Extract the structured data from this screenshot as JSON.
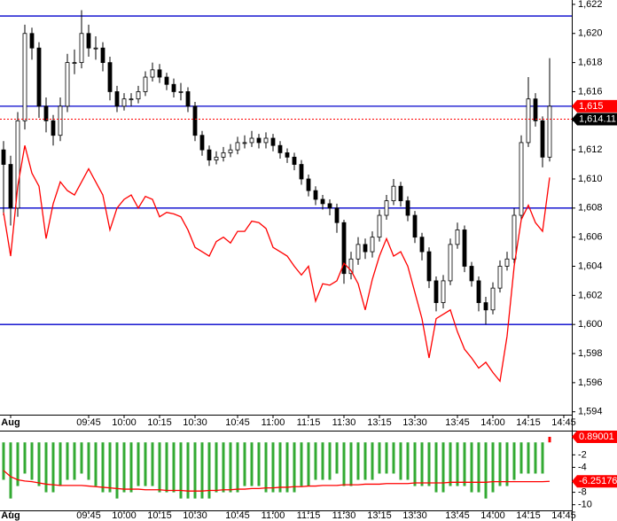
{
  "chart_data": [
    {
      "type": "candlestick",
      "categories": [
        null,
        "Aug",
        null,
        null,
        null,
        null,
        null,
        null,
        null,
        null,
        null,
        null,
        "09:45",
        null,
        null,
        null,
        null,
        "10:00",
        null,
        null,
        null,
        null,
        "10:15",
        null,
        null,
        null,
        null,
        "10:30",
        null,
        null,
        null,
        null,
        null,
        "10:45",
        null,
        null,
        null,
        null,
        "11:00",
        null,
        null,
        null,
        null,
        "11:15",
        null,
        null,
        null,
        null,
        "11:30",
        null,
        null,
        null,
        null,
        "13:15",
        null,
        null,
        null,
        null,
        "13:30",
        null,
        null,
        null,
        null,
        null,
        "13:45",
        null,
        null,
        null,
        null,
        "14:00",
        null,
        null,
        null,
        null,
        "14:15",
        null,
        null,
        null,
        null,
        "14:45"
      ],
      "open": [
        1612,
        1611,
        1608,
        1614,
        1620,
        1619,
        1615,
        1614,
        1613,
        1615,
        1618,
        1618,
        1620,
        1619,
        1619,
        1618,
        1616,
        1615,
        1615.5,
        1615.5,
        1616,
        1617,
        1617.5,
        1617,
        1616.5,
        1616,
        1616,
        1615,
        1613,
        1612,
        1611.3,
        1611.5,
        1611.8,
        1612,
        1612.5,
        1612.5,
        1612.8,
        1612.5,
        1612.8,
        1612.3,
        1611.8,
        1611.5,
        1611,
        1610,
        1609.2,
        1608.6,
        1608.3,
        1608,
        1607,
        1603.5,
        1604.5,
        1605.5,
        1605,
        1606,
        1607.5,
        1608.5,
        1609.5,
        1608.5,
        1607.5,
        1606,
        1605,
        1603,
        1601.5,
        1603,
        1605.5,
        1606.5,
        1604,
        1603,
        1601.5,
        1601,
        1602.5,
        1604,
        1604.5,
        1607.5,
        1612.5,
        1615.5,
        1614,
        1611.5,
        null,
        null
      ],
      "high": [
        1612.6,
        1611.6,
        1614.6,
        1620.6,
        1620.4,
        1619.4,
        1615.6,
        1614.4,
        1615.6,
        1618.6,
        1618.9,
        1621.6,
        1620.6,
        1619.8,
        1619.4,
        1618.4,
        1616.4,
        1615.9,
        1615.9,
        1616.4,
        1617.4,
        1618,
        1617.9,
        1617.3,
        1616.9,
        1616.6,
        1616.3,
        1615.3,
        1613.3,
        1612.3,
        1611.9,
        1612.2,
        1612.4,
        1612.9,
        1613,
        1613.3,
        1613.1,
        1613.2,
        1613.1,
        1612.6,
        1612.1,
        1611.8,
        1611.3,
        1610.3,
        1609.5,
        1608.9,
        1608.6,
        1608.3,
        1607.2,
        1605,
        1606,
        1605.9,
        1606.4,
        1607.9,
        1608.9,
        1610,
        1609.8,
        1608.8,
        1607.8,
        1606.3,
        1605.3,
        1603.3,
        1603.4,
        1605.9,
        1607,
        1606.8,
        1604.3,
        1603.3,
        1601.9,
        1602.9,
        1604.4,
        1605,
        1608,
        1613,
        1617,
        1615.9,
        1614.3,
        1618.3,
        null,
        null
      ],
      "low": [
        1607.5,
        1606.8,
        1607.4,
        1613.4,
        1618.2,
        1614.2,
        1613.2,
        1612.3,
        1612.6,
        1614.6,
        1617.2,
        1617.6,
        1618.4,
        1618.2,
        1617.4,
        1615.4,
        1614.6,
        1614.7,
        1615,
        1615.2,
        1615.7,
        1616.7,
        1616.6,
        1616.1,
        1615.6,
        1615.4,
        1614.6,
        1612.6,
        1611.6,
        1610.9,
        1611,
        1611.2,
        1611.5,
        1611.7,
        1612.1,
        1612.2,
        1612.1,
        1612.1,
        1611.9,
        1611.4,
        1611.1,
        1610.6,
        1609.6,
        1608.8,
        1608.2,
        1607.9,
        1607.5,
        1606.3,
        1602.8,
        1603.1,
        1604.1,
        1604.5,
        1604.6,
        1605.7,
        1607.2,
        1608.2,
        1608.1,
        1607.1,
        1605.6,
        1604.4,
        1602.5,
        1600.9,
        1601.1,
        1602.7,
        1605.2,
        1603.6,
        1602.6,
        1600.9,
        1600,
        1600.7,
        1602.2,
        1603.7,
        1604.2,
        1607.2,
        1612.2,
        1613.6,
        1610.8,
        1611.2,
        null,
        null
      ],
      "close": [
        1611,
        1608,
        1614,
        1620,
        1619,
        1615,
        1614,
        1613,
        1615,
        1618,
        1618,
        1620,
        1619,
        1619,
        1618,
        1616,
        1615,
        1615.5,
        1615.5,
        1616,
        1617,
        1617.5,
        1617,
        1616.5,
        1616,
        1616,
        1615,
        1613,
        1612,
        1611.3,
        1611.5,
        1611.8,
        1612,
        1612.5,
        1612.5,
        1612.8,
        1612.5,
        1612.8,
        1612.3,
        1611.8,
        1611.5,
        1611,
        1610,
        1609.2,
        1608.6,
        1608.3,
        1608,
        1607,
        1603.5,
        1604.5,
        1605.5,
        1605,
        1606,
        1607.5,
        1608.5,
        1609.5,
        1608.5,
        1607.5,
        1606,
        1605,
        1603,
        1601.5,
        1603,
        1605.5,
        1606.5,
        1604,
        1603,
        1601.5,
        1601,
        1602.5,
        1604,
        1604.5,
        1607.5,
        1612.5,
        1615.5,
        1614,
        1611.5,
        1615,
        null,
        null
      ],
      "up_color": "#ffffff",
      "down_color": "#000000",
      "series": [
        {
          "color": "#ff0000",
          "values": [
            1607.7,
            1604.7,
            1609.5,
            1612.3,
            1610.4,
            1609.5,
            1605.9,
            1608.3,
            1609.8,
            1609.2,
            1608.9,
            1609.8,
            1610.7,
            1609.8,
            1608.9,
            1606.5,
            1608.0,
            1608.6,
            1608.9,
            1608.0,
            1608.8,
            1608.6,
            1607.4,
            1607.7,
            1607.6,
            1607.4,
            1606.5,
            1605.3,
            1605.0,
            1604.7,
            1605.7,
            1606.0,
            1605.6,
            1606.4,
            1606.4,
            1607.1,
            1607.0,
            1606.6,
            1605.3,
            1605.0,
            1604.7,
            1604.0,
            1603.4,
            1604.0,
            1601.6,
            1602.8,
            1602.7,
            1603.0,
            1604.2,
            1603.7,
            1602.8,
            1601.0,
            1603.1,
            1604.7,
            1605.9,
            1604.7,
            1605.0,
            1604.0,
            1602.2,
            1600.4,
            1597.7,
            1600.4,
            1600.7,
            1601.0,
            1599.5,
            1598.3,
            1597.7,
            1597.0,
            1597.4,
            1596.7,
            1596.1,
            1599.2,
            1604.0,
            1607.2,
            1608.2,
            1607.0,
            1606.4,
            1610.1,
            null,
            null
          ]
        }
      ],
      "levels": [
        1621.2,
        1615,
        1608,
        1600
      ],
      "level_color": "#0000cc",
      "markers": [
        {
          "value": 1615,
          "label": "1,615",
          "color": "#ff0000"
        },
        {
          "value": 1614.11,
          "label": "1,614.11",
          "color": "#000000",
          "line": "#ff0000"
        }
      ],
      "ylim": [
        1593.8,
        1622.3
      ],
      "yticks": [
        {
          "value": 1594,
          "label": "1,594"
        },
        {
          "value": 1596,
          "label": "1,596"
        },
        {
          "value": 1598,
          "label": "1,598"
        },
        {
          "value": 1600,
          "label": "1,600"
        },
        {
          "value": 1602,
          "label": "1,602"
        },
        {
          "value": 1604,
          "label": "1,604"
        },
        {
          "value": 1606,
          "label": "1,606"
        },
        {
          "value": 1608,
          "label": "1,608"
        },
        {
          "value": 1610,
          "label": "1,610"
        },
        {
          "value": 1612,
          "label": "1,612"
        },
        {
          "value": 1614,
          "label": "1,614"
        },
        {
          "value": 1616,
          "label": "1,616"
        },
        {
          "value": 1618,
          "label": "1,618"
        },
        {
          "value": 1620,
          "label": "1,620"
        },
        {
          "value": 1622,
          "label": "1,622"
        }
      ]
    },
    {
      "type": "bar",
      "categories": [
        null,
        "Aug",
        null,
        null,
        null,
        null,
        null,
        null,
        null,
        null,
        null,
        null,
        "09:45",
        null,
        null,
        null,
        null,
        "10:00",
        null,
        null,
        null,
        null,
        "10:15",
        null,
        null,
        null,
        null,
        "10:30",
        null,
        null,
        null,
        null,
        null,
        "10:45",
        null,
        null,
        null,
        null,
        "11:00",
        null,
        null,
        null,
        null,
        "11:15",
        null,
        null,
        null,
        null,
        "11:30",
        null,
        null,
        null,
        null,
        "13:15",
        null,
        null,
        null,
        null,
        "13:30",
        null,
        null,
        null,
        null,
        null,
        "13:45",
        null,
        null,
        null,
        null,
        "14:00",
        null,
        null,
        null,
        null,
        "14:15",
        null,
        null,
        null,
        null,
        "14:45"
      ],
      "values": [
        -6,
        -9,
        -7,
        -5,
        -6,
        -7,
        -8,
        -8,
        -7,
        -6,
        -6,
        -5,
        -6,
        -7,
        -8,
        -8,
        -9,
        -8,
        -8,
        -7,
        -7,
        -7,
        -8,
        -8,
        -8,
        -9,
        -9,
        -9,
        -9,
        -9,
        -8,
        -8,
        -8,
        -8,
        -7,
        -7,
        -7,
        -8,
        -8,
        -8,
        -8,
        -8,
        -7,
        -7,
        -6,
        -6,
        -6,
        -5,
        -7,
        -7,
        -6,
        -6,
        -6,
        -5,
        -5,
        -5,
        -6,
        -6,
        -7,
        -7,
        -7,
        -8,
        -8,
        -7,
        -7,
        -7,
        -8,
        -8,
        -9,
        -8,
        -7,
        -7,
        -6,
        -5,
        -5,
        -5,
        -5,
        0.89001,
        null,
        null
      ],
      "color": "#33aa33",
      "positive_color": "#ff0000",
      "series": [
        {
          "color": "#ff0000",
          "values": [
            -4.5,
            -5.5,
            -6,
            -6.2,
            -6.3,
            -6.5,
            -6.7,
            -6.8,
            -6.9,
            -6.9,
            -6.9,
            -6.9,
            -7,
            -7.1,
            -7.2,
            -7.3,
            -7.4,
            -7.5,
            -7.5,
            -7.5,
            -7.6,
            -7.6,
            -7.6,
            -7.7,
            -7.7,
            -7.7,
            -7.8,
            -7.8,
            -7.8,
            -7.7,
            -7.7,
            -7.6,
            -7.6,
            -7.5,
            -7.5,
            -7.4,
            -7.4,
            -7.3,
            -7.3,
            -7.2,
            -7.2,
            -7.1,
            -7.1,
            -7,
            -7,
            -6.9,
            -6.9,
            -6.9,
            -6.8,
            -6.8,
            -6.8,
            -6.7,
            -6.7,
            -6.7,
            -6.6,
            -6.6,
            -6.6,
            -6.6,
            -6.5,
            -6.5,
            -6.5,
            -6.5,
            -6.5,
            -6.4,
            -6.4,
            -6.4,
            -6.4,
            -6.4,
            -6.4,
            -6.3,
            -6.3,
            -6.3,
            -6.3,
            -6.3,
            -6.3,
            -6.3,
            -6.3,
            -6.25176,
            null,
            null
          ]
        }
      ],
      "markers": [
        {
          "value": 0.89001,
          "label": "0.89001",
          "color": "#ff0000"
        },
        {
          "value": -6.25176,
          "label": "-6.25176",
          "color": "#ff0000"
        }
      ],
      "ylim": [
        -10.9,
        1.6
      ],
      "yticks": [
        -2,
        -4,
        -8,
        -10
      ]
    }
  ]
}
